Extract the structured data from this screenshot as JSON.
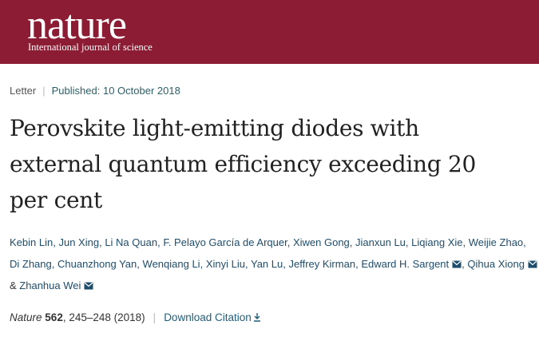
{
  "header": {
    "logo": "nature",
    "tagline": "International journal of science"
  },
  "article": {
    "type": "Letter",
    "separator": "|",
    "published": "Published: 10 October 2018",
    "title_lines": [
      "Perovskite light-emitting diodes with",
      "external quantum efficiency exceeding 20",
      "per cent"
    ],
    "authors": [
      {
        "name": "Kebin Lin",
        "email": false
      },
      {
        "name": "Jun Xing",
        "email": false
      },
      {
        "name": "Li Na Quan",
        "email": false
      },
      {
        "name": "F. Pelayo García de Arquer",
        "email": false
      },
      {
        "name": "Xiwen Gong",
        "email": false
      },
      {
        "name": "Jianxun Lu",
        "email": false
      },
      {
        "name": "Liqiang Xie",
        "email": false
      },
      {
        "name": "Weijie Zhao",
        "email": false
      },
      {
        "name": "Di Zhang",
        "email": false
      },
      {
        "name": "Chuanzhong Yan",
        "email": false
      },
      {
        "name": "Wenqiang Li",
        "email": false
      },
      {
        "name": "Xinyi Liu",
        "email": false
      },
      {
        "name": "Yan Lu",
        "email": false
      },
      {
        "name": "Jeffrey Kirman",
        "email": false
      },
      {
        "name": "Edward H. Sargent",
        "email": true
      },
      {
        "name": "Qihua Xiong",
        "email": true
      },
      {
        "name": "Zhanhua Wei",
        "email": true
      }
    ],
    "author_separator": ",",
    "conjunction": "&",
    "citation": {
      "journal": "Nature",
      "volume": "562",
      "pages": ", 245–248 (2018)",
      "separator": "|",
      "download": "Download Citation"
    }
  }
}
